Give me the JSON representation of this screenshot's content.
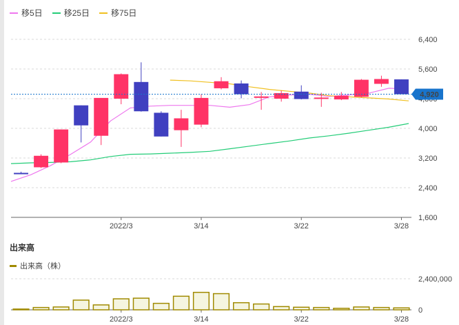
{
  "legend": [
    {
      "label": "移5日",
      "color": "#ee77ee"
    },
    {
      "label": "移25日",
      "color": "#22cc77"
    },
    {
      "label": "移75日",
      "color": "#f0c020"
    }
  ],
  "volume_title": "出来高",
  "volume_legend": "出来高（株）",
  "last_price_label": "4,920",
  "colors": {
    "up": "#ff3366",
    "down": "#4040c0",
    "volume_fill": "#f5f5e0",
    "volume_stroke": "#a08a00",
    "price_badge": "#1874cc"
  },
  "chart_data": [
    {
      "type": "candlestick",
      "x_tick_labels": [
        "2022/3",
        "3/14",
        "3/22",
        "3/28"
      ],
      "y_tick_labels": [
        "6,400",
        "5,600",
        "4,800",
        "4,000",
        "3,200",
        "2,400",
        "1,600"
      ],
      "ylim": [
        1600,
        6400
      ],
      "grid": true,
      "candles": [
        {
          "open": 2800,
          "high": 2830,
          "low": 2770,
          "close": 2790
        },
        {
          "open": 2950,
          "high": 3300,
          "low": 2930,
          "close": 3260
        },
        {
          "open": 3080,
          "high": 3970,
          "low": 3060,
          "close": 3970
        },
        {
          "open": 4620,
          "high": 4620,
          "low": 3620,
          "close": 4080
        },
        {
          "open": 3800,
          "high": 4820,
          "low": 3550,
          "close": 4820
        },
        {
          "open": 4800,
          "high": 5480,
          "low": 4650,
          "close": 5460
        },
        {
          "open": 5250,
          "high": 5780,
          "low": 4450,
          "close": 4460
        },
        {
          "open": 4420,
          "high": 4460,
          "low": 3780,
          "close": 3780
        },
        {
          "open": 3950,
          "high": 4500,
          "low": 3500,
          "close": 4270
        },
        {
          "open": 4100,
          "high": 4920,
          "low": 4030,
          "close": 4820
        },
        {
          "open": 5080,
          "high": 5380,
          "low": 5050,
          "close": 5270
        },
        {
          "open": 5210,
          "high": 5290,
          "low": 4810,
          "close": 4920
        },
        {
          "open": 4830,
          "high": 4980,
          "low": 4500,
          "close": 4860
        },
        {
          "open": 4800,
          "high": 5020,
          "low": 4720,
          "close": 4950
        },
        {
          "open": 4990,
          "high": 5160,
          "low": 4780,
          "close": 4790
        },
        {
          "open": 4800,
          "high": 4960,
          "low": 4580,
          "close": 4830
        },
        {
          "open": 4780,
          "high": 4980,
          "low": 4760,
          "close": 4880
        },
        {
          "open": 4850,
          "high": 5330,
          "low": 4830,
          "close": 5310
        },
        {
          "open": 5200,
          "high": 5420,
          "low": 5120,
          "close": 5330
        },
        {
          "open": 5320,
          "high": 5320,
          "low": 4950,
          "close": 4920
        }
      ],
      "series": [
        {
          "name": "移5日",
          "values": [
            2570,
            2750,
            3000,
            3300,
            3630,
            4200,
            4550,
            4600,
            4620,
            4620,
            4620,
            4570,
            4640,
            4850,
            4900,
            4920,
            4860,
            4900,
            4950,
            5080,
            5060
          ]
        },
        {
          "name": "移25日",
          "values": [
            3050,
            3070,
            3080,
            3100,
            3150,
            3240,
            3300,
            3310,
            3330,
            3350,
            3380,
            3450,
            3520,
            3590,
            3660,
            3740,
            3800,
            3870,
            3950,
            4030,
            4130
          ]
        },
        {
          "name": "移75日",
          "values": [
            null,
            null,
            null,
            null,
            null,
            null,
            null,
            null,
            5300,
            5280,
            5240,
            5200,
            5120,
            5050,
            5000,
            4950,
            4880,
            4850,
            4820,
            4790,
            4740
          ]
        }
      ]
    },
    {
      "type": "bar",
      "name": "出来高（株）",
      "y_tick_labels": [
        "2,400,000",
        "0"
      ],
      "ylim": [
        0,
        2400000
      ],
      "values": [
        60000,
        180000,
        220000,
        750000,
        380000,
        850000,
        900000,
        500000,
        1050000,
        1350000,
        1250000,
        550000,
        450000,
        250000,
        200000,
        180000,
        120000,
        220000,
        180000,
        150000
      ]
    }
  ]
}
